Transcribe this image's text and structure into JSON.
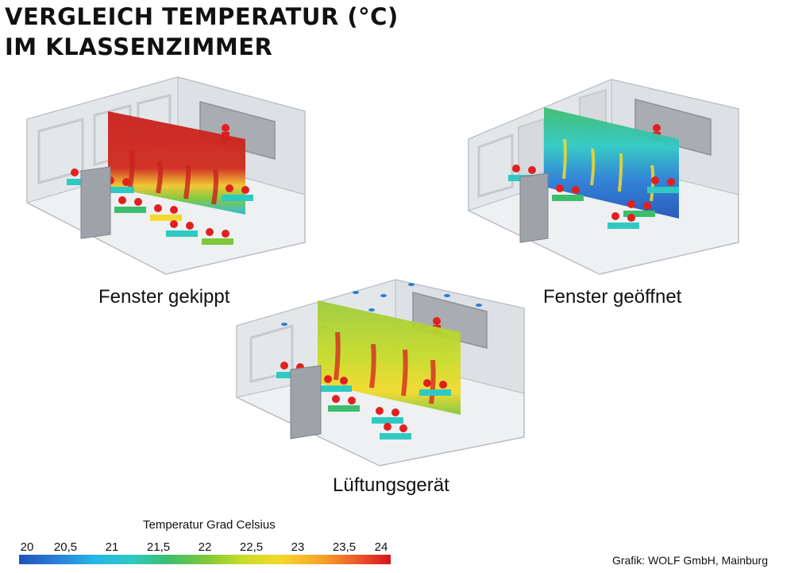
{
  "title": {
    "line1": "VERGLEICH TEMPERATUR (°C)",
    "line2": "IM KLASSENZIMMER"
  },
  "scenes": [
    {
      "caption": "Fenster gekippt"
    },
    {
      "caption": "Fenster geöffnet"
    },
    {
      "caption": "Lüftungsgerät"
    }
  ],
  "legend": {
    "title": "Temperatur Grad Celsius",
    "ticks": [
      "20",
      "20,5",
      "21",
      "21,5",
      "22",
      "22,5",
      "23",
      "23,5",
      "24"
    ],
    "min": 20,
    "max": 24
  },
  "credit": "Grafik: WOLF GmbH, Mainburg",
  "colors": {
    "cold": "#1f54b8",
    "cool": "#25b5e8",
    "mid": "#3dbd6e",
    "warm": "#f3d92b",
    "hot": "#d4141c"
  }
}
